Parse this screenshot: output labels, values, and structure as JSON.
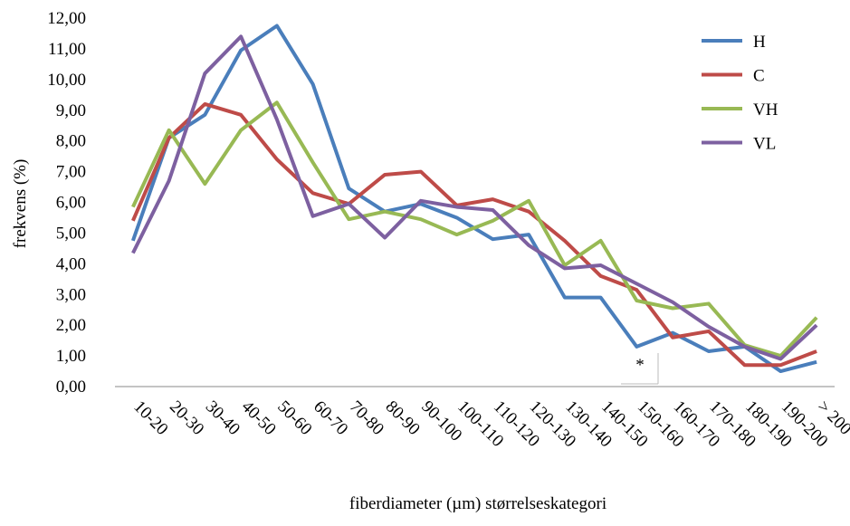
{
  "chart_data": {
    "type": "line",
    "y_label": "frekvens (%)",
    "x_label": "fiberdiameter (µm) størrelseskategori",
    "annotation": "*",
    "categories": [
      "10-20",
      "20-30",
      "30-40",
      "40-50",
      "50-60",
      "60-70",
      "70-80",
      "80-90",
      "90-100",
      "100-110",
      "110-120",
      "120-130",
      "130-140",
      "140-150",
      "150-160",
      "160-170",
      "170-180",
      "180-190",
      "190-200",
      "> 200"
    ],
    "ylim": [
      0,
      12
    ],
    "yticks": [
      {
        "value": 0,
        "label": "0,00"
      },
      {
        "value": 1,
        "label": "1,00"
      },
      {
        "value": 2,
        "label": "2,00"
      },
      {
        "value": 3,
        "label": "3,00"
      },
      {
        "value": 4,
        "label": "4,00"
      },
      {
        "value": 5,
        "label": "5,00"
      },
      {
        "value": 6,
        "label": "6,00"
      },
      {
        "value": 7,
        "label": "7,00"
      },
      {
        "value": 8,
        "label": "8,00"
      },
      {
        "value": 9,
        "label": "9,00"
      },
      {
        "value": 10,
        "label": "10,00"
      },
      {
        "value": 11,
        "label": "11,00"
      },
      {
        "value": 12,
        "label": "12,00"
      }
    ],
    "legend": "top-right",
    "series": [
      {
        "name": "H",
        "color": "#4a7ebb",
        "values": [
          4.75,
          8.1,
          8.85,
          10.95,
          11.75,
          9.85,
          6.45,
          5.7,
          5.95,
          5.5,
          4.8,
          4.95,
          2.9,
          2.9,
          1.3,
          1.75,
          1.15,
          1.3,
          0.5,
          0.8
        ]
      },
      {
        "name": "C",
        "color": "#be4b48",
        "values": [
          5.4,
          8.1,
          9.2,
          8.85,
          7.4,
          6.3,
          5.95,
          6.9,
          7.0,
          5.9,
          6.1,
          5.7,
          4.75,
          3.6,
          3.15,
          1.6,
          1.8,
          0.7,
          0.7,
          1.15
        ]
      },
      {
        "name": "VH",
        "color": "#98b954",
        "values": [
          5.85,
          8.35,
          6.6,
          8.35,
          9.25,
          7.3,
          5.45,
          5.7,
          5.45,
          4.95,
          5.4,
          6.05,
          3.95,
          4.75,
          2.8,
          2.55,
          2.7,
          1.35,
          1.0,
          2.25
        ]
      },
      {
        "name": "VL",
        "color": "#7d60a0",
        "values": [
          4.35,
          6.7,
          10.2,
          11.4,
          8.7,
          5.55,
          5.95,
          4.85,
          6.05,
          5.85,
          5.75,
          4.6,
          3.85,
          3.95,
          3.35,
          2.75,
          1.95,
          1.3,
          0.9,
          2.0
        ]
      }
    ]
  }
}
